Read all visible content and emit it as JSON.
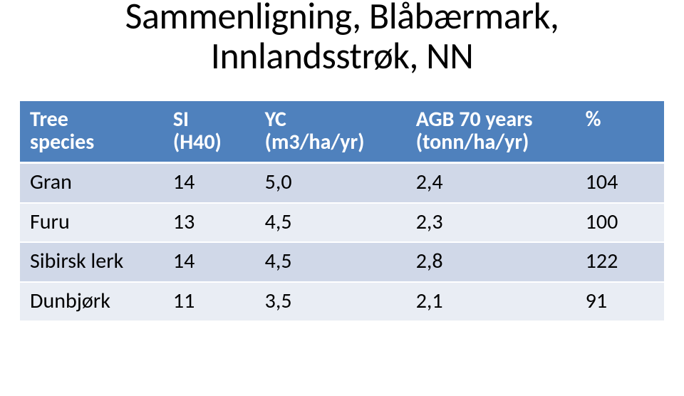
{
  "title": {
    "line1": "Sammenligning, Blåbærmark,",
    "line2": "Innlandsstrøk, NN",
    "fontsize": 52,
    "font_weight": 400,
    "color": "#000000"
  },
  "table": {
    "header_bg": "#4f81bd",
    "header_text_color": "#ffffff",
    "header_fontsize": 30,
    "header_border_bottom_width": 3,
    "header_border_bottom_color": "#ffffff",
    "row_bg_alt1": "#d0d8e8",
    "row_bg_alt2": "#e9edf4",
    "row_text_color": "#000000",
    "row_fontsize": 30,
    "row_border_bottom_width": 2,
    "row_border_bottom_color": "#ffffff",
    "columns": [
      {
        "key": "species",
        "label_l1": "Tree",
        "label_l2": "species"
      },
      {
        "key": "si",
        "label_l1": "SI",
        "label_l2": "(H40)"
      },
      {
        "key": "yc",
        "label_l1": "YC",
        "label_l2": "(m3/ha/yr)"
      },
      {
        "key": "agb",
        "label_l1": "AGB 70 years",
        "label_l2": "(tonn/ha/yr)"
      },
      {
        "key": "pct",
        "label_l1": "%",
        "label_l2": ""
      }
    ],
    "rows": [
      {
        "species": "Gran",
        "si": "14",
        "yc": "5,0",
        "agb": "2,4",
        "pct": "104"
      },
      {
        "species": "Furu",
        "si": "13",
        "yc": "4,5",
        "agb": "2,3",
        "pct": "100"
      },
      {
        "species": "Sibirsk lerk",
        "si": "14",
        "yc": "4,5",
        "agb": "2,8",
        "pct": "122"
      },
      {
        "species": "Dunbjørk",
        "si": "11",
        "yc": "3,5",
        "agb": "2,1",
        "pct": "91"
      }
    ]
  }
}
